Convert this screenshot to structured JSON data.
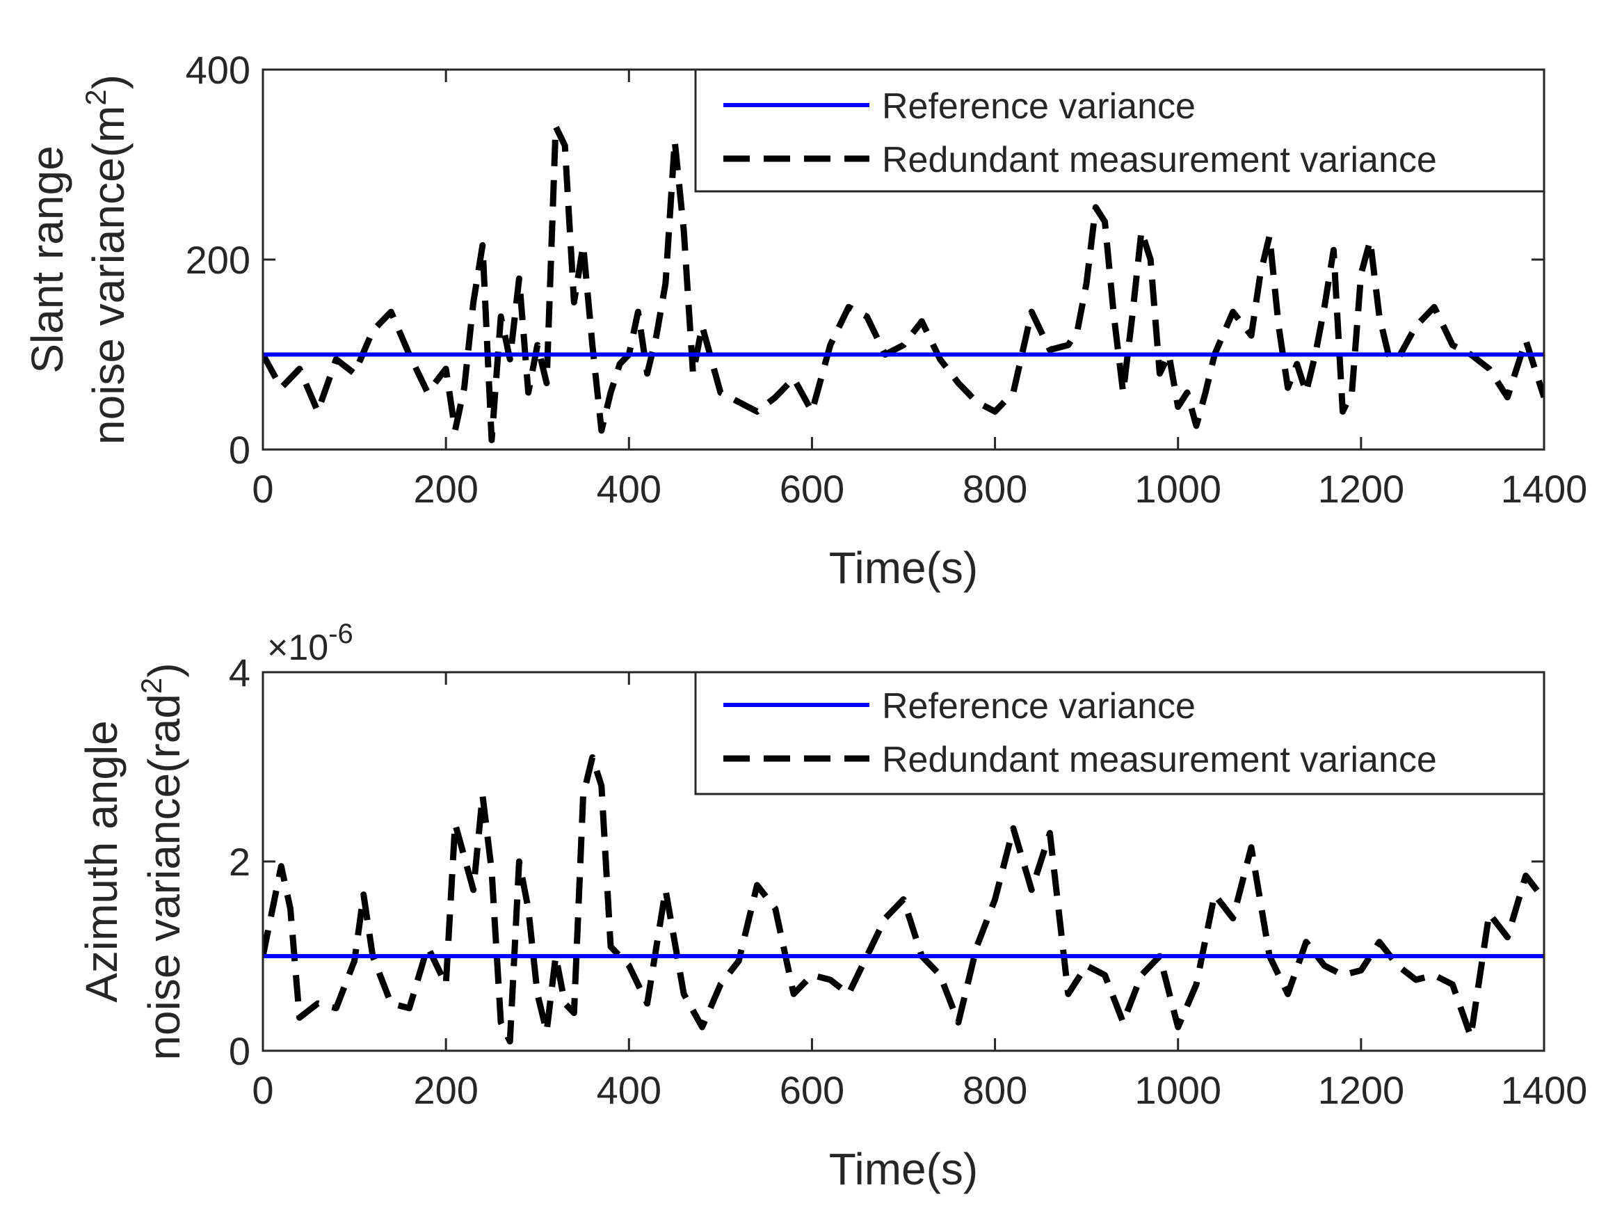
{
  "chart_data": [
    {
      "type": "line",
      "xlabel": "Time(s)",
      "ylabel_line1": "Slant range",
      "ylabel_line2_base": "noise variance(m",
      "ylabel_line2_sup": "2",
      "ylabel_line2_end": ")",
      "xlim": [
        0,
        1400
      ],
      "ylim": [
        0,
        400
      ],
      "x_ticks": [
        0,
        200,
        400,
        600,
        800,
        1000,
        1200,
        1400
      ],
      "y_ticks": [
        0,
        200,
        400
      ],
      "y_multiplier": "",
      "legend_position": "top-right",
      "series": [
        {
          "name": "Reference variance",
          "color": "#0000ff",
          "style": "solid",
          "x": [
            0,
            1400
          ],
          "values": [
            100,
            100
          ]
        },
        {
          "name": "Redundant measurement variance",
          "color": "#000000",
          "style": "dashed",
          "x": [
            0,
            20,
            40,
            60,
            80,
            100,
            120,
            140,
            160,
            180,
            200,
            210,
            220,
            230,
            240,
            250,
            260,
            270,
            280,
            290,
            300,
            310,
            320,
            330,
            340,
            350,
            360,
            370,
            380,
            390,
            400,
            410,
            420,
            430,
            440,
            450,
            460,
            470,
            480,
            500,
            520,
            540,
            560,
            580,
            600,
            620,
            640,
            660,
            680,
            700,
            720,
            740,
            760,
            780,
            800,
            820,
            840,
            860,
            880,
            890,
            900,
            910,
            920,
            930,
            940,
            950,
            960,
            970,
            980,
            990,
            1000,
            1010,
            1020,
            1030,
            1040,
            1060,
            1080,
            1090,
            1100,
            1110,
            1120,
            1130,
            1140,
            1150,
            1160,
            1170,
            1180,
            1190,
            1200,
            1210,
            1220,
            1230,
            1240,
            1260,
            1280,
            1300,
            1320,
            1340,
            1360,
            1380,
            1400
          ],
          "values": [
            100,
            65,
            85,
            40,
            95,
            80,
            125,
            145,
            100,
            60,
            85,
            20,
            65,
            155,
            215,
            10,
            140,
            95,
            180,
            60,
            110,
            70,
            340,
            320,
            155,
            215,
            110,
            20,
            60,
            90,
            100,
            145,
            80,
            120,
            175,
            325,
            230,
            80,
            130,
            60,
            50,
            40,
            55,
            75,
            40,
            110,
            150,
            140,
            100,
            110,
            135,
            95,
            70,
            50,
            40,
            60,
            145,
            105,
            110,
            125,
            175,
            255,
            240,
            140,
            60,
            140,
            230,
            200,
            80,
            100,
            45,
            60,
            25,
            60,
            100,
            145,
            120,
            185,
            225,
            130,
            65,
            90,
            60,
            100,
            150,
            210,
            40,
            60,
            185,
            220,
            140,
            100,
            95,
            130,
            150,
            110,
            100,
            85,
            55,
            115,
            55
          ]
        }
      ]
    },
    {
      "type": "line",
      "xlabel": "Time(s)",
      "ylabel_line1": "Azimuth angle",
      "ylabel_line2_base": "noise variance(rad",
      "ylabel_line2_sup": "2",
      "ylabel_line2_end": ")",
      "xlim": [
        0,
        1400
      ],
      "ylim": [
        0,
        4
      ],
      "x_ticks": [
        0,
        200,
        400,
        600,
        800,
        1000,
        1200,
        1400
      ],
      "y_ticks": [
        0,
        2,
        4
      ],
      "y_multiplier": "×10",
      "y_multiplier_exp": "-6",
      "legend_position": "top-right",
      "series": [
        {
          "name": "Reference variance",
          "color": "#0000ff",
          "style": "solid",
          "x": [
            0,
            1400
          ],
          "values": [
            1.0,
            1.0
          ]
        },
        {
          "name": "Redundant measurement variance",
          "color": "#000000",
          "style": "dashed",
          "x": [
            0,
            20,
            30,
            40,
            60,
            80,
            100,
            110,
            120,
            140,
            160,
            180,
            200,
            210,
            220,
            230,
            240,
            250,
            260,
            270,
            280,
            290,
            300,
            310,
            320,
            330,
            340,
            350,
            360,
            370,
            380,
            400,
            420,
            440,
            460,
            480,
            500,
            520,
            540,
            560,
            580,
            600,
            620,
            640,
            660,
            680,
            700,
            720,
            740,
            760,
            780,
            800,
            820,
            840,
            860,
            880,
            900,
            920,
            940,
            960,
            980,
            1000,
            1020,
            1040,
            1060,
            1080,
            1100,
            1120,
            1140,
            1160,
            1180,
            1200,
            1220,
            1240,
            1260,
            1280,
            1300,
            1320,
            1340,
            1360,
            1380,
            1400
          ],
          "values": [
            1.0,
            1.95,
            1.5,
            0.35,
            0.5,
            0.45,
            0.95,
            1.65,
            1.0,
            0.5,
            0.45,
            1.1,
            0.7,
            2.4,
            2.05,
            1.7,
            2.7,
            1.9,
            0.3,
            0.1,
            2.0,
            1.5,
            0.6,
            0.2,
            1.0,
            0.5,
            0.4,
            2.7,
            3.1,
            2.8,
            1.1,
            0.9,
            0.5,
            1.7,
            0.6,
            0.25,
            0.7,
            0.95,
            1.75,
            1.5,
            0.6,
            0.8,
            0.75,
            0.6,
            1.0,
            1.4,
            1.6,
            1.0,
            0.8,
            0.3,
            1.1,
            1.6,
            2.35,
            1.7,
            2.3,
            0.6,
            0.9,
            0.8,
            0.3,
            0.8,
            1.0,
            0.25,
            0.7,
            1.65,
            1.4,
            2.15,
            1.0,
            0.6,
            1.15,
            0.9,
            0.8,
            0.85,
            1.15,
            0.9,
            0.75,
            0.8,
            0.7,
            0.15,
            1.45,
            1.2,
            1.85,
            1.6
          ]
        }
      ]
    }
  ],
  "colors": {
    "reference": "#0000ff",
    "redundant": "#000000",
    "axes": "#262626"
  }
}
